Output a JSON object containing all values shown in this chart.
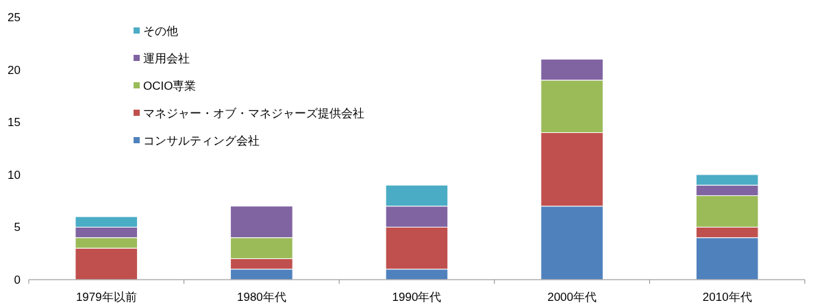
{
  "chart_data": {
    "type": "bar",
    "stacked": true,
    "categories": [
      "1979年以前",
      "1980年代",
      "1990年代",
      "2000年代",
      "2010年代"
    ],
    "series": [
      {
        "name": "コンサルティング会社",
        "color": "#4f81bd",
        "values": [
          0,
          1,
          1,
          7,
          4
        ]
      },
      {
        "name": "マネジャー・オブ・マネジャーズ提供会社",
        "color": "#c0504d",
        "values": [
          3,
          1,
          4,
          7,
          1
        ]
      },
      {
        "name": "OCIO専業",
        "color": "#9bbb59",
        "values": [
          1,
          2,
          0,
          5,
          3
        ]
      },
      {
        "name": "運用会社",
        "color": "#8064a2",
        "values": [
          1,
          3,
          2,
          2,
          1
        ]
      },
      {
        "name": "その他",
        "color": "#4bacc6",
        "values": [
          1,
          0,
          2,
          0,
          1
        ]
      }
    ],
    "ylim": [
      0,
      25
    ],
    "yticks": [
      0,
      5,
      10,
      15,
      20,
      25
    ],
    "legend": "top left"
  }
}
